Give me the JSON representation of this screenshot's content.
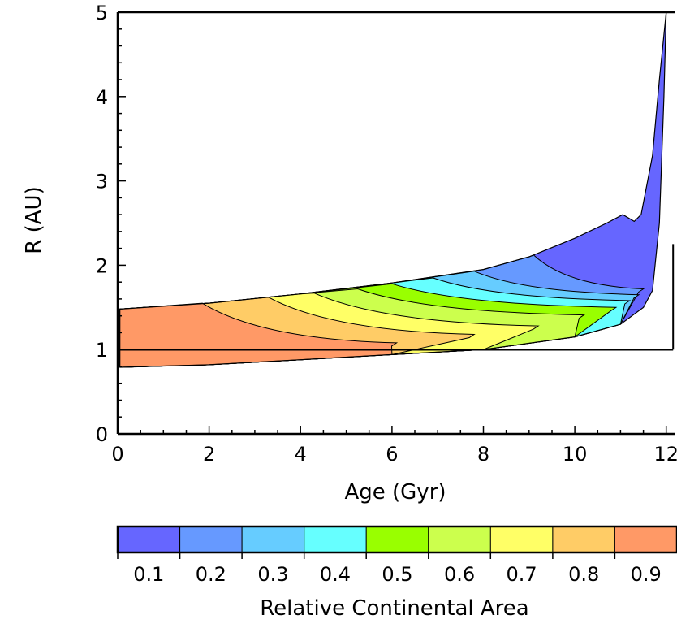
{
  "chart_data": {
    "type": "contour",
    "xlabel": "Age (Gyr)",
    "ylabel": "R (AU)",
    "xlim": [
      0,
      12.2
    ],
    "ylim": [
      0,
      5
    ],
    "x_ticks": [
      0,
      2,
      4,
      6,
      8,
      10,
      12
    ],
    "y_ticks": [
      0,
      1,
      2,
      3,
      4,
      5
    ],
    "habitable_zone": {
      "inner": [
        [
          0.05,
          0.79
        ],
        [
          2,
          0.82
        ],
        [
          4,
          0.88
        ],
        [
          6,
          0.94
        ],
        [
          8,
          1.0
        ],
        [
          10,
          1.15
        ],
        [
          11,
          1.3
        ],
        [
          11.5,
          1.5
        ],
        [
          11.7,
          1.7
        ],
        [
          11.85,
          2.5
        ],
        [
          11.95,
          4.0
        ],
        [
          12.0,
          5.0
        ]
      ],
      "outer": [
        [
          0.05,
          1.48
        ],
        [
          2,
          1.55
        ],
        [
          4,
          1.66
        ],
        [
          6,
          1.79
        ],
        [
          8,
          1.95
        ],
        [
          9,
          2.1
        ],
        [
          10,
          2.32
        ],
        [
          10.7,
          2.5
        ],
        [
          11.05,
          2.6
        ],
        [
          11.3,
          2.52
        ],
        [
          11.45,
          2.6
        ],
        [
          11.7,
          3.3
        ],
        [
          11.85,
          4.2
        ],
        [
          12.0,
          5.0
        ]
      ]
    },
    "levels": [
      {
        "value": 0.9,
        "color": "#ff9966",
        "tip": [
          6.1,
          1.08
        ],
        "top": [
          1.85,
          1.55
        ]
      },
      {
        "value": 0.8,
        "color": "#ffcc66",
        "tip": [
          7.8,
          1.18
        ],
        "top": [
          3.3,
          1.62
        ]
      },
      {
        "value": 0.7,
        "color": "#ffff66",
        "tip": [
          9.2,
          1.28
        ],
        "top": [
          4.3,
          1.67
        ]
      },
      {
        "value": 0.6,
        "color": "#ccff4d",
        "tip": [
          10.2,
          1.41
        ],
        "top": [
          5.25,
          1.72
        ]
      },
      {
        "value": 0.5,
        "color": "#99ff00",
        "tip": [
          10.9,
          1.5
        ],
        "top": [
          6.0,
          1.78
        ]
      },
      {
        "value": 0.4,
        "color": "#66ffff",
        "tip": [
          11.2,
          1.58
        ],
        "top": [
          6.9,
          1.85
        ]
      },
      {
        "value": 0.3,
        "color": "#66ccff",
        "tip": [
          11.4,
          1.65
        ],
        "top": [
          7.8,
          1.93
        ]
      },
      {
        "value": 0.2,
        "color": "#6699ff",
        "tip": [
          11.5,
          1.72
        ],
        "top": [
          9.1,
          2.12
        ]
      },
      {
        "value": 0.1,
        "color": "#6666ff",
        "tip": null,
        "top": null
      }
    ],
    "planet_orbit": {
      "y": 1.0,
      "x_end": 12.15,
      "vertical_end": [
        12.15,
        2.25
      ]
    },
    "colorbar": {
      "label": "Relative Continental Area",
      "tick_labels": [
        "0.1",
        "0.2",
        "0.3",
        "0.4",
        "0.5",
        "0.6",
        "0.7",
        "0.8",
        "0.9"
      ]
    }
  }
}
